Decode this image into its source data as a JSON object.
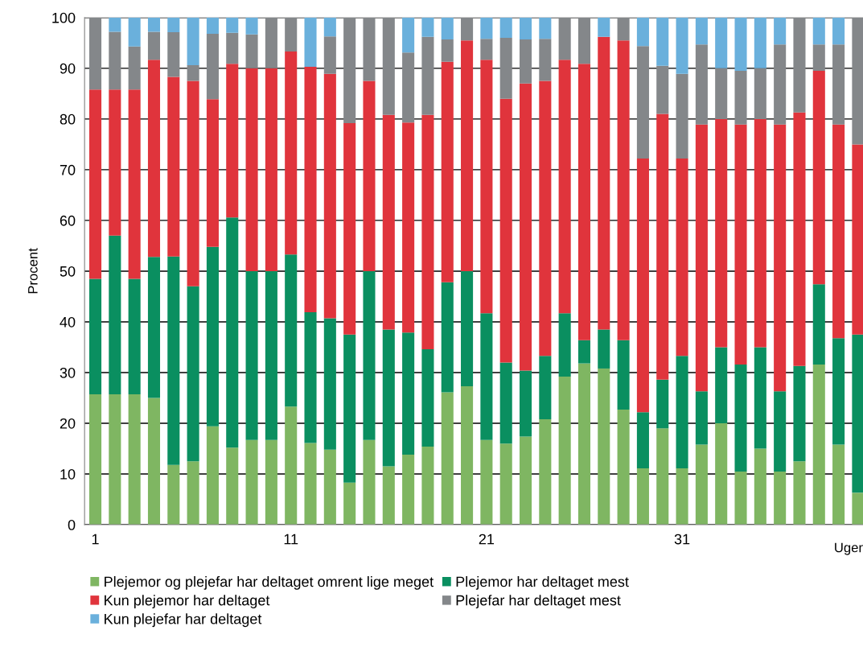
{
  "chart_data": {
    "type": "bar",
    "stacked": true,
    "ylabel": "Procent",
    "xlabel": "Uger",
    "categories": [
      "1",
      null,
      null,
      null,
      null,
      null,
      null,
      null,
      null,
      null,
      "11",
      null,
      null,
      null,
      null,
      null,
      null,
      null,
      null,
      null,
      "21",
      null,
      null,
      null,
      null,
      null,
      null,
      null,
      null,
      null,
      "31",
      null,
      null,
      null,
      null,
      null,
      null,
      null,
      null,
      null
    ],
    "ylim": [
      0,
      100
    ],
    "yticks": [
      0,
      10,
      20,
      30,
      40,
      50,
      60,
      70,
      80,
      90,
      100
    ],
    "grid": "y",
    "legend": "bottom",
    "series": [
      {
        "name": "Plejemor og plejefar har deltaget omrent lige meget",
        "color": "#7fb662",
        "values": [
          25.7,
          25.7,
          25.7,
          25,
          11.8,
          12.5,
          19.4,
          15.2,
          16.7,
          16.7,
          23.3,
          16.1,
          14.8,
          8.3,
          16.7,
          11.5,
          13.8,
          15.4,
          26.1,
          27.3,
          16.7,
          16,
          17.4,
          20.8,
          29.2,
          31.8,
          30.8,
          22.7,
          11.1,
          19,
          11.1,
          15.8,
          20,
          10.5,
          15,
          10.5,
          12.5,
          31.6,
          15.8,
          6.3
        ]
      },
      {
        "name": "Plejemor har deltaget mest",
        "color": "#0a8f60",
        "values": [
          22.8,
          31.3,
          22.8,
          27.8,
          41.1,
          34.5,
          35.4,
          45.4,
          33.3,
          33.3,
          30,
          25.8,
          25.9,
          29.2,
          33.3,
          27,
          24.1,
          19.2,
          21.7,
          22.7,
          25,
          16,
          13,
          12.5,
          12.5,
          4.6,
          7.7,
          13.7,
          11.1,
          9.6,
          22.2,
          10.5,
          15,
          21.1,
          20,
          15.8,
          18.8,
          15.8,
          21,
          31.2
        ]
      },
      {
        "name": "Kun plejemor har deltaget",
        "color": "#e0343c",
        "values": [
          37.3,
          28.8,
          37.3,
          38.9,
          35.4,
          40.5,
          29.1,
          30.3,
          40,
          40,
          40,
          48.4,
          48.2,
          41.7,
          37.5,
          42.3,
          41.4,
          46.2,
          43.5,
          45.5,
          50,
          52,
          56.6,
          54.2,
          50,
          54.5,
          57.7,
          59.1,
          50,
          52.4,
          38.9,
          52.6,
          45,
          47.3,
          45,
          52.6,
          50,
          42.1,
          42.1,
          37.5
        ]
      },
      {
        "name": "Plejefar har deltaget mest",
        "color": "#84878a",
        "values": [
          14.2,
          11.4,
          8.5,
          5.5,
          8.8,
          3.1,
          12.9,
          6.1,
          6.7,
          10,
          6.7,
          0,
          7.4,
          20.8,
          12.5,
          19.2,
          13.8,
          15.4,
          4.4,
          4.5,
          4.1,
          12,
          8.7,
          8.3,
          8.3,
          9.1,
          0,
          4.5,
          22.2,
          9.5,
          16.7,
          15.8,
          10,
          10.6,
          10,
          15.8,
          18.7,
          5.2,
          15.8,
          25
        ]
      },
      {
        "name": "Kun plejefar har deltaget",
        "color": "#6ab0dc",
        "values": [
          0,
          2.8,
          5.7,
          2.8,
          2.9,
          9.4,
          3.2,
          3,
          3.3,
          0,
          0,
          9.7,
          3.7,
          0,
          0,
          0,
          6.9,
          3.8,
          4.3,
          0,
          4.2,
          4,
          4.3,
          4.2,
          0,
          0,
          3.8,
          0,
          5.6,
          9.5,
          11.1,
          5.3,
          10,
          10.5,
          10,
          5.3,
          0,
          5.3,
          5.3,
          0
        ]
      }
    ]
  }
}
